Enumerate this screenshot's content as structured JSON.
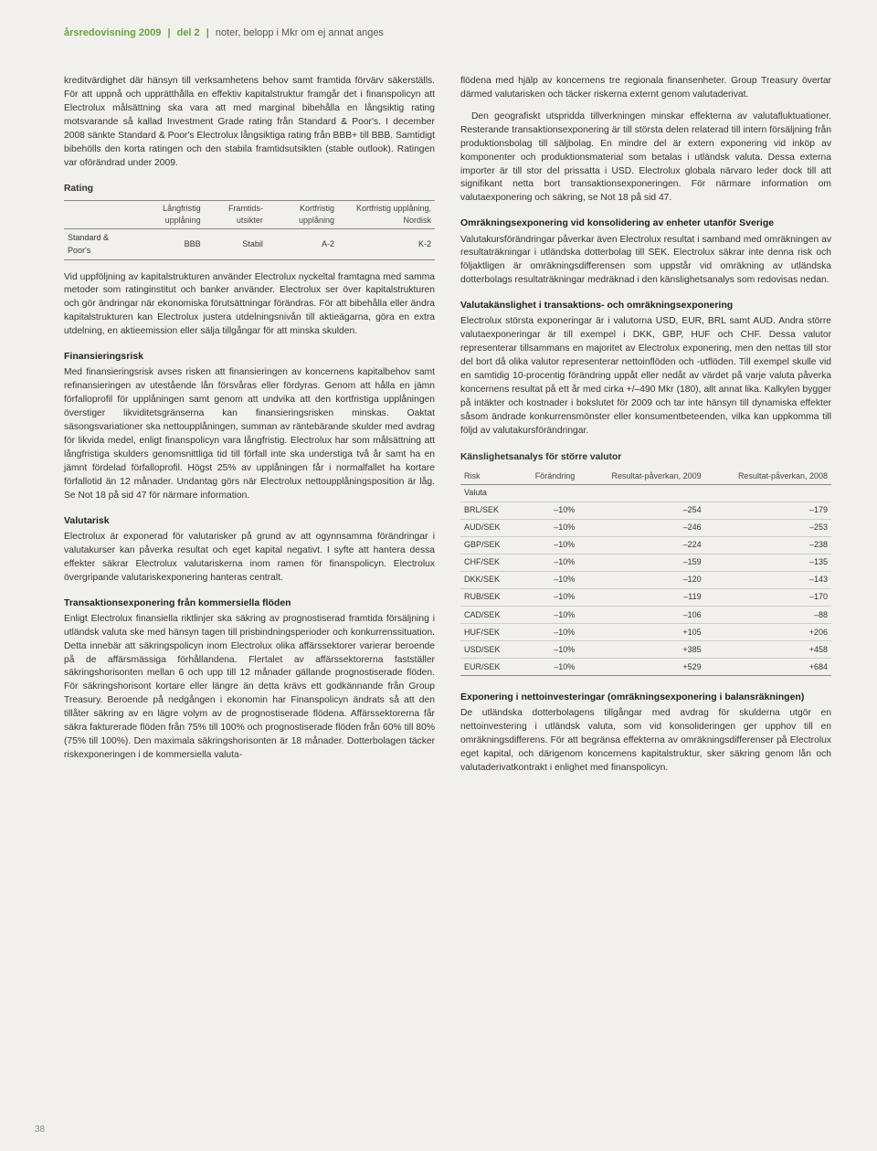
{
  "header": {
    "title_strong": "årsredovisning 2009",
    "sep1": "|",
    "part": "del 2",
    "sep2": "|",
    "rest": "noter, belopp i Mkr om ej annat anges"
  },
  "left": {
    "p1": "kreditvärdighet där hänsyn till verksamhetens behov samt framtida förvärv säkerställs. För att uppnå och upprätthålla en effektiv kapitalstruktur framgår det i finanspolicyn att Electrolux målsättning ska vara att med marginal bibehålla en långsiktig rating motsvarande så kallad Investment Grade rating från Standard & Poor's. I december 2008 sänkte Standard & Poor's Electrolux långsiktiga rating från BBB+ till BBB. Samtidigt bibehölls den korta ratingen och den stabila framtidsutsikten (stable outlook). Ratingen var oförändrad under 2009.",
    "rating_title": "Rating",
    "rating_headers": [
      "",
      "Långfristig upplåning",
      "Framtids-utsikter",
      "Kortfristig upplåning",
      "Kortfristig upplåning, Nordisk"
    ],
    "rating_row": [
      "Standard & Poor's",
      "BBB",
      "Stabil",
      "A-2",
      "K-2"
    ],
    "p2": "Vid uppföljning av kapitalstrukturen använder Electrolux nyckeltal framtagna med samma metoder som ratinginstitut och banker använder. Electrolux ser över kapitalstrukturen och gör ändringar när ekonomiska förutsättningar förändras. För att bibehålla eller ändra kapitalstrukturen kan Electrolux justera utdelningsnivån till aktieägarna, göra en extra utdelning, en aktieemission eller sälja tillgångar för att minska skulden.",
    "h_fin": "Finansieringsrisk",
    "p3": "Med finansieringsrisk avses risken att finansieringen av koncernens kapitalbehov samt refinansieringen av utestående lån försvåras eller fördyras. Genom att hålla en jämn förfalloprofil för upplåningen samt genom att undvika att den kortfristiga upplåningen överstiger likviditetsgränserna kan finansieringsrisken minskas. Oaktat säsongsvariationer ska nettoupplåningen, summan av räntebärande skulder med avdrag för likvida medel, enligt finanspolicyn vara långfristig. Electrolux har som målsättning att långfristiga skulders genomsnittliga tid till förfall inte ska understiga två år samt ha en jämnt fördelad förfalloprofil. Högst 25% av upplåningen får i normalfallet ha kortare förfallotid än 12 månader. Undantag görs när Electrolux nettoupplåningsposition är låg. Se Not 18 på sid 47 för närmare information.",
    "h_val": "Valutarisk",
    "p4": "Electrolux är exponerad för valutarisker på grund av att ogynnsamma förändringar i valutakurser kan påverka resultat och eget kapital negativt. I syfte att hantera dessa effekter säkrar Electrolux valutariskerna inom ramen för finanspolicyn. Electrolux övergripande valutariskexponering hanteras centralt.",
    "h_trans": "Transaktionsexponering från kommersiella flöden",
    "p5": "Enligt Electrolux finansiella riktlinjer ska säkring av prognostiserad framtida försäljning i utländsk valuta ske med hänsyn tagen till prisbindningsperioder och konkurrenssituation. Detta innebär att säkringspolicyn inom Electrolux olika affärssektorer varierar beroende på de affärsmässiga förhållandena. Flertalet av affärssektorerna fastställer säkringshorisonten mellan 6 och upp till 12 månader gällande prognostiserade flöden. För säkringshorisont kortare eller längre än detta krävs ett godkännande från Group Treasury. Beroende på nedgången i ekonomin har Finanspolicyn ändrats så att den tillåter säkring av en lägre volym av de prognostiserade flödena. Affärssektorerna får säkra fakturerade flöden från 75% till 100% och prognostiserade flöden från 60% till 80% (75% till 100%). Den maximala säkringshorisonten är 18 månader. Dotterbolagen täcker riskexponeringen i de kommersiella valuta-"
  },
  "right": {
    "p1": "flödena med hjälp av koncernens tre regionala finansenheter. Group Treasury övertar därmed valutarisken och täcker riskerna externt genom valutaderivat.",
    "p2": "Den geografiskt utspridda tillverkningen minskar effekterna av valutafluktuationer. Resterande transaktionsexponering är till största delen relaterad till intern försäljning från produktionsbolag till säljbolag. En mindre del är extern exponering vid inköp av komponenter och produktionsmaterial som betalas i utländsk valuta. Dessa externa importer är till stor del prissatta i USD. Electrolux globala närvaro leder dock till att signifikant netta bort transaktionsexponeringen. För närmare information om valutaexponering och säkring, se Not 18 på sid 47.",
    "h_omr": "Omräkningsexponering vid konsolidering av enheter utanför Sverige",
    "p3": "Valutakursförändringar påverkar även Electrolux resultat i samband med omräkningen av resultaträkningar i utländska dotterbolag till SEK. Electrolux säkrar inte denna risk och följaktligen är omräkningsdifferensen som uppstår vid omräkning av utländska dotterbolags resultaträkningar medräknad i den känslighetsanalys som redovisas nedan.",
    "h_valk": "Valutakänslighet i transaktions- och omräkningsexponering",
    "p4": "Electrolux största exponeringar är i valutorna USD, EUR, BRL samt AUD. Andra större valutaexponeringar är till exempel i DKK, GBP, HUF och CHF. Dessa valutor representerar tillsammans en majoritet av Electrolux exponering, men den nettas till stor del bort då olika valutor representerar nettoinflöden och -utflöden. Till exempel skulle vid en samtidig 10-procentig förändring uppåt eller nedåt av värdet på varje valuta påverka koncernens resultat på ett år med cirka +/–490 Mkr (180), allt annat lika. Kalkylen bygger på intäkter och kostnader i bokslutet för 2009 och tar inte hänsyn till dynamiska effekter såsom ändrade konkurrensmönster eller konsumentbeteenden, vilka kan uppkomma till följd av valutakursförändringar.",
    "sens_title": "Känslighetsanalys för större valutor",
    "sens_headers": [
      "Risk",
      "Förändring",
      "Resultat-påverkan, 2009",
      "Resultat-påverkan, 2008"
    ],
    "sens_section": "Valuta",
    "sens_rows": [
      [
        "BRL/SEK",
        "–10%",
        "–254",
        "–179"
      ],
      [
        "AUD/SEK",
        "–10%",
        "–246",
        "–253"
      ],
      [
        "GBP/SEK",
        "–10%",
        "–224",
        "–238"
      ],
      [
        "CHF/SEK",
        "–10%",
        "–159",
        "–135"
      ],
      [
        "DKK/SEK",
        "–10%",
        "–120",
        "–143"
      ],
      [
        "RUB/SEK",
        "–10%",
        "–119",
        "–170"
      ],
      [
        "CAD/SEK",
        "–10%",
        "–106",
        "–88"
      ],
      [
        "HUF/SEK",
        "–10%",
        "+105",
        "+206"
      ],
      [
        "USD/SEK",
        "–10%",
        "+385",
        "+458"
      ],
      [
        "EUR/SEK",
        "–10%",
        "+529",
        "+684"
      ]
    ],
    "h_exp": "Exponering i nettoinvesteringar (omräkningsexponering i balansräkningen)",
    "p5": "De utländska dotterbolagens tillgångar med avdrag för skulderna utgör en nettoinvestering i utländsk valuta, som vid konsolideringen ger upphov till en omräkningsdifferens. För att begränsa effekterna av omräkningsdifferenser på Electrolux eget kapital, och därigenom koncernens kapitalstruktur, sker säkring genom lån och valutaderivatkontrakt i enlighet med finanspolicyn."
  },
  "pagenum": "38"
}
